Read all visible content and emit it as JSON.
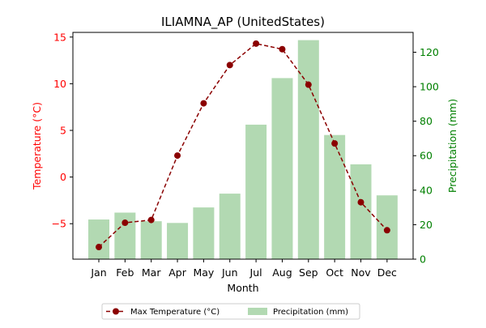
{
  "chart_data": {
    "type": "bar+line",
    "title": "ILIAMNA_AP (UnitedStates)",
    "xlabel": "Month",
    "ylabel_left": "Temperature (°C)",
    "ylabel_right": "Precipitation (mm)",
    "categories": [
      "Jan",
      "Feb",
      "Mar",
      "Apr",
      "May",
      "Jun",
      "Jul",
      "Aug",
      "Sep",
      "Oct",
      "Nov",
      "Dec"
    ],
    "series": [
      {
        "name": "Max Temperature (°C)",
        "type": "line",
        "axis": "left",
        "color": "#8b0000",
        "values": [
          -7.5,
          -4.9,
          -4.6,
          2.3,
          7.9,
          12.0,
          14.3,
          13.7,
          9.9,
          3.6,
          -2.7,
          -5.7
        ]
      },
      {
        "name": "Precipitation (mm)",
        "type": "bar",
        "axis": "right",
        "color": "#b2d9b2",
        "values": [
          23,
          27,
          22,
          21,
          30,
          38,
          78,
          105,
          127,
          72,
          55,
          37
        ]
      }
    ],
    "ylim_left": [
      -8.8,
      15.5
    ],
    "ylim_right": [
      0,
      131.5
    ],
    "yticks_left": [
      "−5",
      "0",
      "5",
      "10",
      "15"
    ],
    "yticks_right": [
      "0",
      "20",
      "40",
      "60",
      "80",
      "100",
      "120"
    ],
    "left_axis_color": "#ff0000",
    "right_axis_color": "#008000",
    "grid": false,
    "legend_position": "bottom-center"
  }
}
